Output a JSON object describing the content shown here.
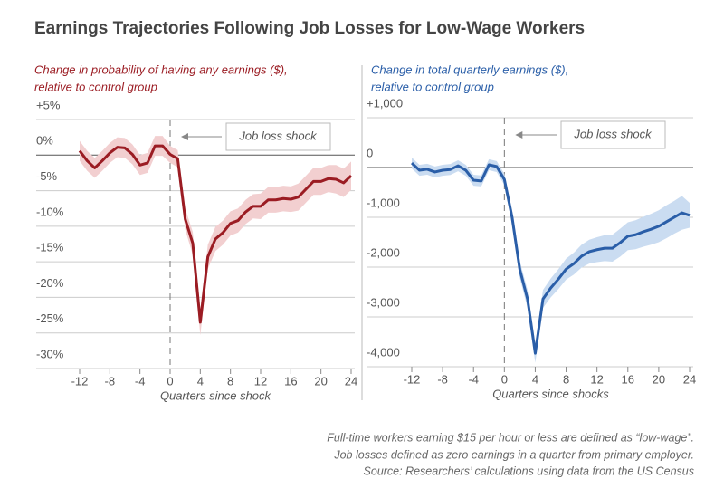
{
  "title": "Earnings Trajectories Following Job Losses for Low-Wage Workers",
  "chart_data": [
    {
      "type": "line",
      "ylabel": [
        "Change in probability of having any earnings ($),",
        "relative to control group"
      ],
      "xlabel": "Quarters since shock",
      "annotation": "Job loss shock",
      "x": [
        -12,
        -11,
        -10,
        -9,
        -8,
        -7,
        -6,
        -5,
        -4,
        -3,
        -2,
        -1,
        0,
        1,
        2,
        3,
        4,
        5,
        6,
        7,
        8,
        9,
        10,
        11,
        12,
        13,
        14,
        15,
        16,
        17,
        18,
        19,
        20,
        21,
        22,
        23,
        24
      ],
      "xlim": [
        -12,
        24
      ],
      "xticks": [
        -12,
        -8,
        -4,
        0,
        4,
        8,
        12,
        16,
        20,
        24
      ],
      "ylim": [
        -30,
        5
      ],
      "yticks": [
        {
          "value": 5,
          "label": "+5%"
        },
        {
          "value": 0,
          "label": "0%"
        },
        {
          "value": -5,
          "label": "-5%"
        },
        {
          "value": -10,
          "label": "-10%"
        },
        {
          "value": -15,
          "label": "-15%"
        },
        {
          "value": -20,
          "label": "-20%"
        },
        {
          "value": -25,
          "label": "-25%"
        },
        {
          "value": -30,
          "label": "-30%"
        }
      ],
      "grid": true,
      "series": [
        {
          "color": "#9b1c23",
          "band_color": "#f2cfd0",
          "values": [
            0.6,
            -0.8,
            -1.8,
            -0.8,
            0.3,
            1.1,
            1.0,
            0.1,
            -1.4,
            -1.1,
            1.3,
            1.3,
            0.1,
            -0.5,
            -9.0,
            -12.4,
            -23.5,
            -14.3,
            -11.8,
            -10.9,
            -9.6,
            -9.2,
            -8.0,
            -7.2,
            -7.2,
            -6.3,
            -6.3,
            -6.1,
            -6.2,
            -5.9,
            -4.8,
            -3.7,
            -3.7,
            -3.3,
            -3.4,
            -3.9,
            -2.9
          ],
          "ci_upper": [
            2.0,
            0.6,
            -0.4,
            0.6,
            1.7,
            2.5,
            2.4,
            1.5,
            0.0,
            0.3,
            2.7,
            2.7,
            1.3,
            0.7,
            -7.5,
            -10.8,
            -21.7,
            -12.6,
            -10.1,
            -9.2,
            -7.9,
            -7.5,
            -6.3,
            -5.5,
            -5.4,
            -4.5,
            -4.5,
            -4.3,
            -4.4,
            -4.0,
            -2.9,
            -1.8,
            -1.8,
            -1.4,
            -1.4,
            -1.9,
            -0.9
          ],
          "ci_lower": [
            -0.8,
            -2.2,
            -3.2,
            -2.2,
            -1.1,
            -0.3,
            -0.4,
            -1.3,
            -2.8,
            -2.5,
            -0.1,
            -0.1,
            -1.1,
            -1.7,
            -10.5,
            -14.0,
            -25.3,
            -16.0,
            -13.5,
            -12.6,
            -11.3,
            -10.9,
            -9.7,
            -8.9,
            -9.0,
            -8.1,
            -8.1,
            -7.9,
            -8.0,
            -7.8,
            -6.7,
            -5.6,
            -5.6,
            -5.2,
            -5.4,
            -5.9,
            -4.9
          ]
        }
      ]
    },
    {
      "type": "line",
      "ylabel": [
        "Change in total quarterly earnings ($),",
        "relative to control group"
      ],
      "xlabel": "Quarters since shocks",
      "annotation": "Job loss shock",
      "x": [
        -12,
        -11,
        -10,
        -9,
        -8,
        -7,
        -6,
        -5,
        -4,
        -3,
        -2,
        -1,
        0,
        1,
        2,
        3,
        4,
        5,
        6,
        7,
        8,
        9,
        10,
        11,
        12,
        13,
        14,
        15,
        16,
        17,
        18,
        19,
        20,
        21,
        22,
        23,
        24
      ],
      "xlim": [
        -12,
        24
      ],
      "xticks": [
        -12,
        -8,
        -4,
        0,
        4,
        8,
        12,
        16,
        20,
        24
      ],
      "ylim": [
        -4000,
        1000
      ],
      "yticks": [
        {
          "value": 1000,
          "label": "+1,000"
        },
        0,
        {
          "value": -1000,
          "label": "-1,000"
        },
        {
          "value": -2000,
          "label": "-2,000"
        },
        {
          "value": -3000,
          "label": "-3,000"
        },
        {
          "value": -4000,
          "label": "-4,000"
        }
      ],
      "grid": true,
      "series": [
        {
          "color": "#2a5ea8",
          "band_color": "#cadcf1",
          "values": [
            90,
            -55,
            -35,
            -90,
            -55,
            -40,
            35,
            -55,
            -255,
            -270,
            55,
            20,
            -240,
            -1000,
            -2050,
            -2640,
            -3730,
            -2640,
            -2420,
            -2240,
            -2040,
            -1930,
            -1780,
            -1690,
            -1650,
            -1620,
            -1620,
            -1510,
            -1380,
            -1350,
            -1290,
            -1240,
            -1180,
            -1090,
            -1000,
            -910,
            -960
          ],
          "ci_upper": [
            200,
            55,
            75,
            20,
            55,
            70,
            145,
            55,
            -145,
            -160,
            165,
            130,
            -130,
            -850,
            -1880,
            -2460,
            -3540,
            -2460,
            -2230,
            -2040,
            -1830,
            -1710,
            -1550,
            -1450,
            -1400,
            -1360,
            -1350,
            -1230,
            -1100,
            -1060,
            -990,
            -930,
            -860,
            -760,
            -670,
            -570,
            -710
          ],
          "ci_lower": [
            -20,
            -165,
            -145,
            -200,
            -165,
            -150,
            -75,
            -165,
            -365,
            -380,
            -55,
            -90,
            -350,
            -1150,
            -2220,
            -2820,
            -3920,
            -2820,
            -2610,
            -2440,
            -2250,
            -2150,
            -2010,
            -1930,
            -1900,
            -1880,
            -1890,
            -1790,
            -1660,
            -1640,
            -1590,
            -1550,
            -1500,
            -1420,
            -1330,
            -1250,
            -1210
          ]
        }
      ]
    }
  ],
  "footnotes": [
    "Full-time workers earning $15 per hour or less are defined as “low-wage”.",
    "Job losses defined as zero earnings in a quarter from primary employer.",
    "Source: Researchers’ calculations using data from the US Census"
  ]
}
